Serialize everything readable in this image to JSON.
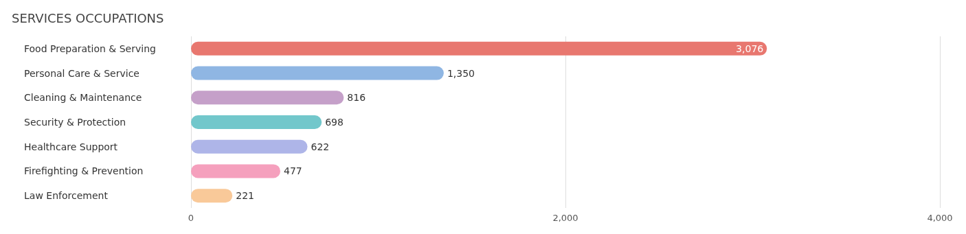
{
  "chart_data": {
    "type": "bar",
    "orientation": "horizontal",
    "title": "SERVICES OCCUPATIONS",
    "categories": [
      "Food Preparation & Serving",
      "Personal Care & Service",
      "Cleaning & Maintenance",
      "Security & Protection",
      "Healthcare Support",
      "Firefighting & Prevention",
      "Law Enforcement"
    ],
    "values": [
      3076,
      1350,
      816,
      698,
      622,
      477,
      221
    ],
    "value_labels": [
      "3,076",
      "1,350",
      "816",
      "698",
      "622",
      "477",
      "221"
    ],
    "colors": [
      "#e8776f",
      "#8fb6e3",
      "#c5a0c9",
      "#72c7cb",
      "#aeb5e8",
      "#f5a0bd",
      "#f9c999"
    ],
    "xlim": [
      0,
      4000
    ],
    "xticks": [
      {
        "value": 0,
        "label": "0"
      },
      {
        "value": 2000,
        "label": "2,000"
      },
      {
        "value": 4000,
        "label": "4,000"
      }
    ],
    "grid": "x"
  }
}
